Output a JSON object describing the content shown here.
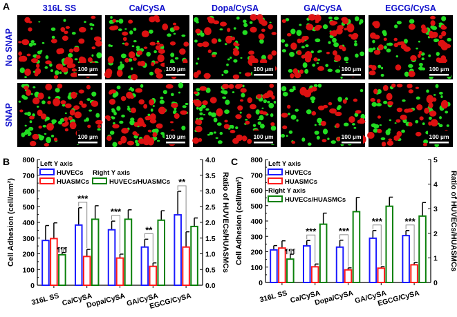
{
  "panel_a": {
    "label": "A",
    "columns": [
      "316L SS",
      "Ca/CySA",
      "Dopa/CySA",
      "GA/CySA",
      "EGCG/CySA"
    ],
    "rows": [
      "No SNAP",
      "SNAP"
    ],
    "scale_bar": "100 µm",
    "colors": {
      "label": "#1010cc",
      "green": "#22dd22",
      "red": "#dd1111",
      "bg": "#000000"
    }
  },
  "colors": {
    "huvec": "#1a1aff",
    "huasmc": "#ff1a1a",
    "ratio": "#0a800a"
  },
  "chart_data": [
    {
      "panel": "B",
      "type": "bar",
      "categories": [
        "316L SS",
        "Ca/CySA",
        "Dopa/CySA",
        "GA/CySA",
        "EGCG/CySA"
      ],
      "ylabel": "Cell Adhesion (cell/mm²)",
      "y2label": "Ratio of HUVECs/HUASMCs",
      "ylim": [
        0,
        800
      ],
      "yticks": [
        "0",
        "100",
        "200",
        "300",
        "400",
        "500",
        "600",
        "700",
        "800"
      ],
      "y2lim": [
        0,
        4
      ],
      "y2ticks": [
        "0.0",
        "0.5",
        "1.0",
        "1.5",
        "2.0",
        "2.5",
        "3.0",
        "3.5",
        "4.0"
      ],
      "legend": {
        "left_title": "Left Y axis",
        "right_title": "Right Y axis",
        "placement": "top-left"
      },
      "series": [
        {
          "name": "HUVECs",
          "axis": "left",
          "values": [
            285,
            383,
            353,
            243,
            448
          ],
          "errors": [
            95,
            110,
            55,
            50,
            150
          ]
        },
        {
          "name": "HUASMCs",
          "axis": "left",
          "values": [
            297,
            183,
            173,
            120,
            243
          ],
          "errors": [
            100,
            45,
            25,
            22,
            97
          ]
        },
        {
          "name": "HUVECs/HUASMCs",
          "axis": "right",
          "values": [
            0.97,
            2.1,
            2.1,
            2.07,
            1.87
          ],
          "errors": [
            0.07,
            0.43,
            0.3,
            0.3,
            0.27
          ]
        }
      ],
      "annotations": [
        {
          "text": "¶¶¶",
          "category": 0
        },
        {
          "text": "***",
          "category": 1
        },
        {
          "text": "***",
          "category": 2
        },
        {
          "text": "**",
          "category": 3
        },
        {
          "text": "**",
          "category": 4
        }
      ]
    },
    {
      "panel": "C",
      "type": "bar",
      "categories": [
        "316L SS",
        "Ca/CySA",
        "Dopa/CySA",
        "GA/CySA",
        "EGCG/CySA"
      ],
      "ylabel": "Cell Adhesion (cell/mm²)",
      "y2label": "Ratio of HUVECs/HUASMCs",
      "ylim": [
        0,
        800
      ],
      "yticks": [
        "0",
        "100",
        "200",
        "300",
        "400",
        "500",
        "600",
        "700",
        "800"
      ],
      "y2lim": [
        0,
        5
      ],
      "y2ticks": [
        "0",
        "1",
        "2",
        "3",
        "4",
        "5"
      ],
      "legend": {
        "left_title": "Left Y axis",
        "right_title": "Right Y axis",
        "placement": "top-left"
      },
      "series": [
        {
          "name": "HUVECs",
          "axis": "left",
          "values": [
            212,
            238,
            230,
            288,
            305
          ],
          "errors": [
            28,
            35,
            45,
            50,
            33
          ]
        },
        {
          "name": "HUASMCs",
          "axis": "left",
          "values": [
            224,
            102,
            82,
            93,
            115
          ],
          "errors": [
            47,
            18,
            13,
            10,
            15
          ]
        },
        {
          "name": "HUVECs/HUASMCs",
          "axis": "right",
          "values": [
            0.95,
            2.37,
            2.88,
            3.1,
            2.7
          ],
          "errors": [
            0.2,
            0.45,
            0.58,
            0.37,
            0.55
          ]
        }
      ],
      "annotations": [
        {
          "text": "¶¶¶",
          "category": 0
        },
        {
          "text": "***",
          "category": 1
        },
        {
          "text": "***",
          "category": 2
        },
        {
          "text": "***",
          "category": 3
        },
        {
          "text": "***",
          "category": 4
        }
      ]
    }
  ]
}
